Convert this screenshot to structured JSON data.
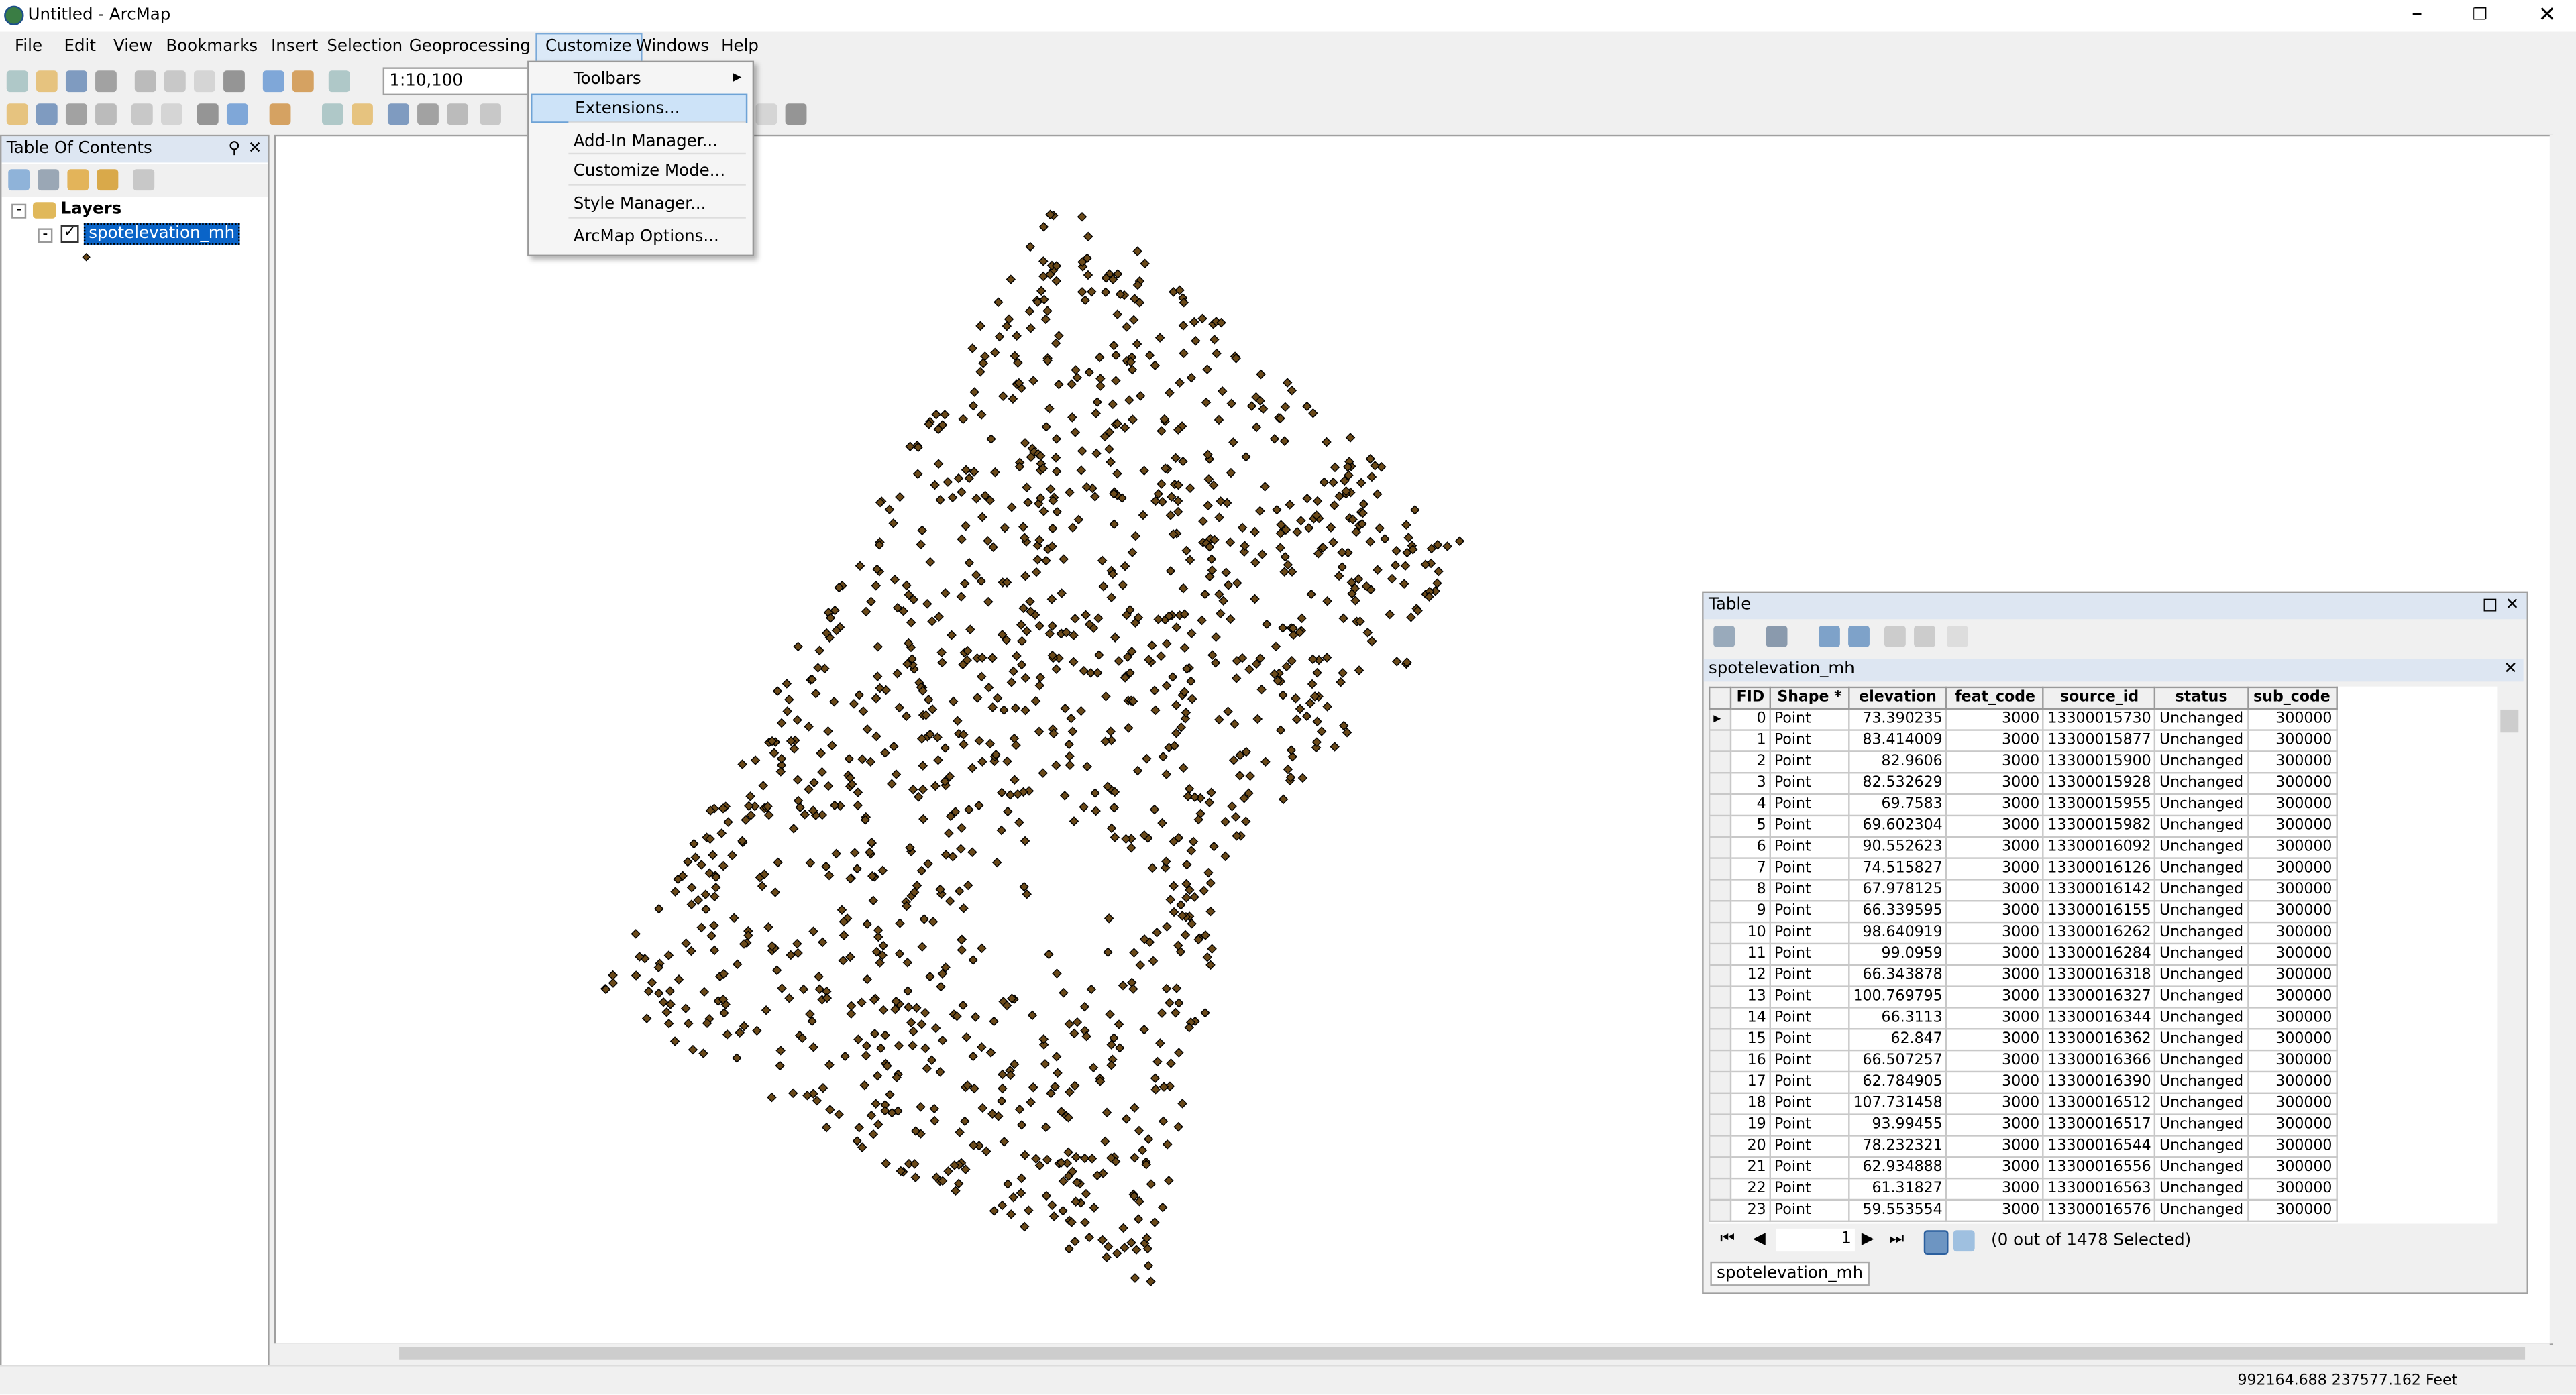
{
  "window": {
    "title": "Untitled - ArcMap"
  },
  "menu_bar": [
    "File",
    "Edit",
    "View",
    "Bookmarks",
    "Insert",
    "Selection",
    "Geoprocessing",
    "Customize",
    "Windows",
    "Help"
  ],
  "customize_menu": [
    "Toolbars",
    "Extensions...",
    "Add-In Manager...",
    "Customize Mode...",
    "Style Manager...",
    "ArcMap Options..."
  ],
  "scale": "1:10,100",
  "toc": {
    "title": "Table Of Contents",
    "root": "Layers",
    "layer": "spotelevation_mh"
  },
  "table_window": {
    "title": "Table",
    "layer": "spotelevation_mh",
    "columns": [
      "FID",
      "Shape *",
      "elevation",
      "feat_code",
      "source_id",
      "status",
      "sub_code"
    ],
    "rows": [
      [
        "0",
        "Point",
        "73.390235",
        "3000",
        "13300015730",
        "Unchanged",
        "300000"
      ],
      [
        "1",
        "Point",
        "83.414009",
        "3000",
        "13300015877",
        "Unchanged",
        "300000"
      ],
      [
        "2",
        "Point",
        "82.9606",
        "3000",
        "13300015900",
        "Unchanged",
        "300000"
      ],
      [
        "3",
        "Point",
        "82.532629",
        "3000",
        "13300015928",
        "Unchanged",
        "300000"
      ],
      [
        "4",
        "Point",
        "69.7583",
        "3000",
        "13300015955",
        "Unchanged",
        "300000"
      ],
      [
        "5",
        "Point",
        "69.602304",
        "3000",
        "13300015982",
        "Unchanged",
        "300000"
      ],
      [
        "6",
        "Point",
        "90.552623",
        "3000",
        "13300016092",
        "Unchanged",
        "300000"
      ],
      [
        "7",
        "Point",
        "74.515827",
        "3000",
        "13300016126",
        "Unchanged",
        "300000"
      ],
      [
        "8",
        "Point",
        "67.978125",
        "3000",
        "13300016142",
        "Unchanged",
        "300000"
      ],
      [
        "9",
        "Point",
        "66.339595",
        "3000",
        "13300016155",
        "Unchanged",
        "300000"
      ],
      [
        "10",
        "Point",
        "98.640919",
        "3000",
        "13300016262",
        "Unchanged",
        "300000"
      ],
      [
        "11",
        "Point",
        "99.0959",
        "3000",
        "13300016284",
        "Unchanged",
        "300000"
      ],
      [
        "12",
        "Point",
        "66.343878",
        "3000",
        "13300016318",
        "Unchanged",
        "300000"
      ],
      [
        "13",
        "Point",
        "100.769795",
        "3000",
        "13300016327",
        "Unchanged",
        "300000"
      ],
      [
        "14",
        "Point",
        "66.3113",
        "3000",
        "13300016344",
        "Unchanged",
        "300000"
      ],
      [
        "15",
        "Point",
        "62.847",
        "3000",
        "13300016362",
        "Unchanged",
        "300000"
      ],
      [
        "16",
        "Point",
        "66.507257",
        "3000",
        "13300016366",
        "Unchanged",
        "300000"
      ],
      [
        "17",
        "Point",
        "62.784905",
        "3000",
        "13300016390",
        "Unchanged",
        "300000"
      ],
      [
        "18",
        "Point",
        "107.731458",
        "3000",
        "13300016512",
        "Unchanged",
        "300000"
      ],
      [
        "19",
        "Point",
        "93.99455",
        "3000",
        "13300016517",
        "Unchanged",
        "300000"
      ],
      [
        "20",
        "Point",
        "78.232321",
        "3000",
        "13300016544",
        "Unchanged",
        "300000"
      ],
      [
        "21",
        "Point",
        "62.934888",
        "3000",
        "13300016556",
        "Unchanged",
        "300000"
      ],
      [
        "22",
        "Point",
        "61.31827",
        "3000",
        "13300016563",
        "Unchanged",
        "300000"
      ],
      [
        "23",
        "Point",
        "59.553554",
        "3000",
        "13300016576",
        "Unchanged",
        "300000"
      ]
    ],
    "current_record": "1",
    "selection_status": "(0 out of 1478 Selected)",
    "tab": "spotelevation_mh"
  },
  "status_bar": {
    "coordinates": "992164.688  237577.162 Feet"
  }
}
